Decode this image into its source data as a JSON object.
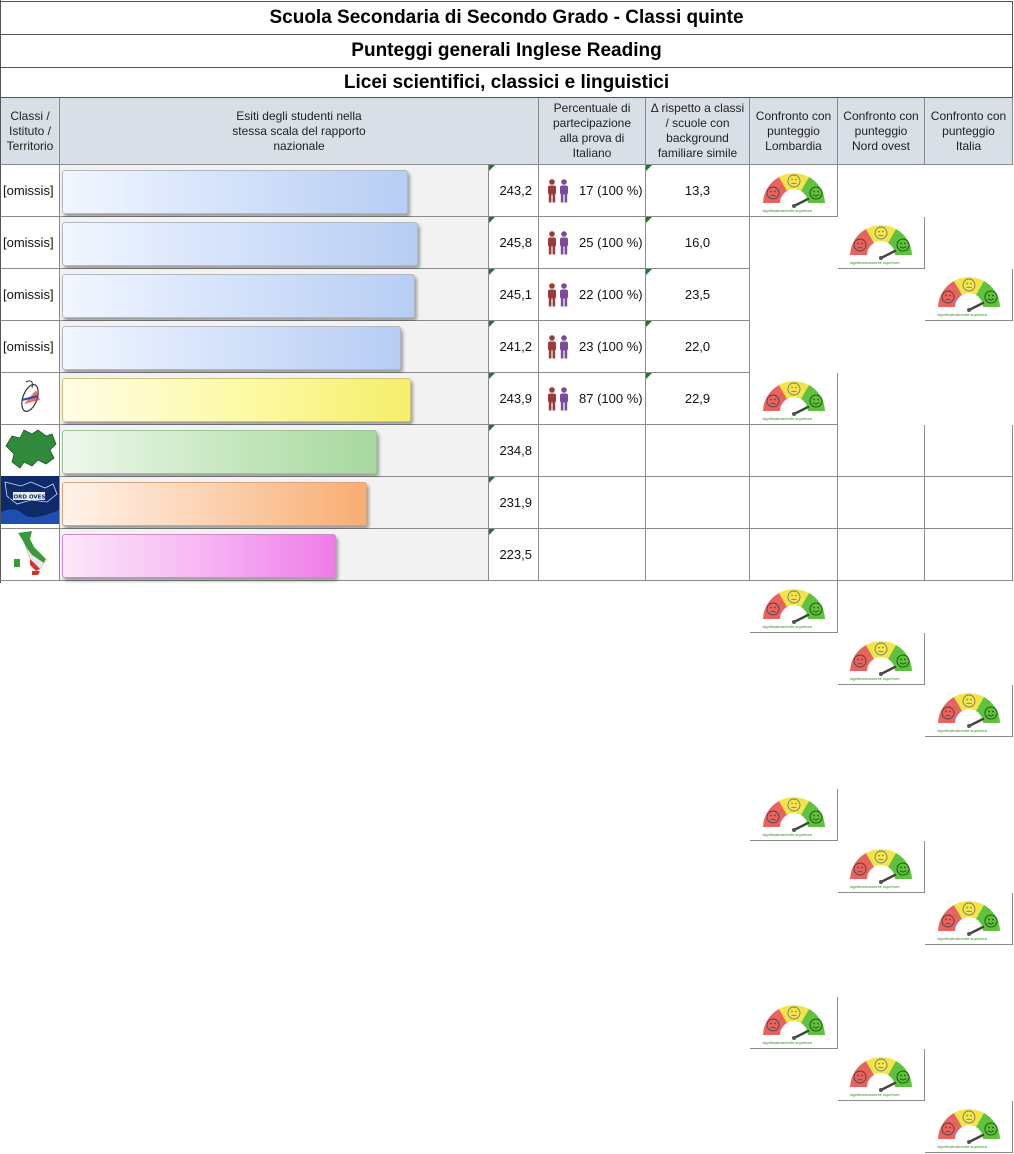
{
  "titles": {
    "line1": "Scuola Secondaria di Secondo Grado - Classi quinte",
    "line2": "Punteggi generali Inglese Reading",
    "line3": "Licei scientifici, classici e linguistici"
  },
  "headers": {
    "col1": "Classi / Istituto / Territorio",
    "col2": "Esiti degli studenti nella stessa scala del rapporto nazionale",
    "col3": "Percentuale di partecipazione alla prova di Italiano",
    "col4": "Δ rispetto a classi / scuole con background familiare simile",
    "col5": "Confronto con punteggio Lombardia",
    "col6": "Confronto con punteggio Nord ovest",
    "col7": "Confronto con punteggio Italia"
  },
  "gauge_caption": "significativamente superiore",
  "colors": {
    "gauge_red": "#e9625d",
    "gauge_yellow": "#f3e44a",
    "gauge_green": "#5fc13d",
    "people_male": "#9a3a3a",
    "people_female": "#7b4a9a"
  },
  "rows": [
    {
      "name": "[omissis]",
      "score": "243,2",
      "score_value": 243.2,
      "bar": "blue",
      "participants": "17 (100 %)",
      "delta": "13,3",
      "gauges": true
    },
    {
      "name": "[omissis]",
      "score": "245,8",
      "score_value": 245.8,
      "bar": "blue",
      "participants": "25 (100 %)",
      "delta": "16,0",
      "gauges": true
    },
    {
      "name": "[omissis]",
      "score": "245,1",
      "score_value": 245.1,
      "bar": "blue",
      "participants": "22 (100 %)",
      "delta": "23,5",
      "gauges": true
    },
    {
      "name": "[omissis]",
      "score": "241,2",
      "score_value": 241.2,
      "bar": "blue",
      "participants": "23 (100 %)",
      "delta": "22,0",
      "gauges": true
    },
    {
      "name": "",
      "icon": "school-logo-icon",
      "score": "243,9",
      "score_value": 243.9,
      "bar": "yellow",
      "participants": "87 (100 %)",
      "delta": "22,9",
      "gauges": true
    },
    {
      "name": "",
      "icon": "lombardia-map-icon",
      "score": "234,8",
      "score_value": 234.8,
      "bar": "green",
      "participants": "",
      "delta": "",
      "gauges": false
    },
    {
      "name": "",
      "icon": "nord-ovest-map-icon",
      "map_text": "NORD OVEST",
      "score": "231,9",
      "score_value": 231.9,
      "bar": "orange",
      "participants": "",
      "delta": "",
      "gauges": false
    },
    {
      "name": "",
      "icon": "italia-map-icon",
      "score": "223,5",
      "score_value": 223.5,
      "bar": "pink",
      "participants": "",
      "delta": "",
      "gauges": false
    }
  ]
}
